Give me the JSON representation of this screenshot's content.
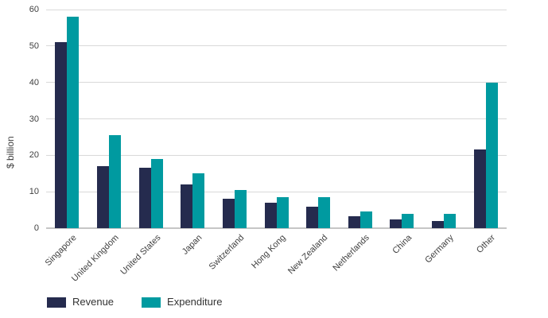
{
  "chart_data": {
    "type": "bar",
    "title": "",
    "xlabel": "",
    "ylabel": "$ billion",
    "categories": [
      "Singapore",
      "United Kingdom",
      "United States",
      "Japan",
      "Switzerland",
      "Hong Kong",
      "New Zealand",
      "Netherlands",
      "China",
      "Germany",
      "Other"
    ],
    "series": [
      {
        "name": "Revenue",
        "color": "#252b4e",
        "values": [
          51,
          17,
          16.5,
          12,
          8,
          7,
          6,
          3.3,
          2.3,
          2,
          21.5
        ]
      },
      {
        "name": "Expenditure",
        "color": "#009aa0",
        "values": [
          58,
          25.5,
          19,
          15,
          10.5,
          8.5,
          8.5,
          4.5,
          4,
          4,
          40
        ]
      }
    ],
    "ylim": [
      0,
      60
    ],
    "ytick_step": 10,
    "grid": true,
    "legend_position": "bottom-left",
    "colors": {
      "gridline": "#d9d9d9",
      "axis": "#c6c6c6",
      "text": "#404040"
    }
  }
}
